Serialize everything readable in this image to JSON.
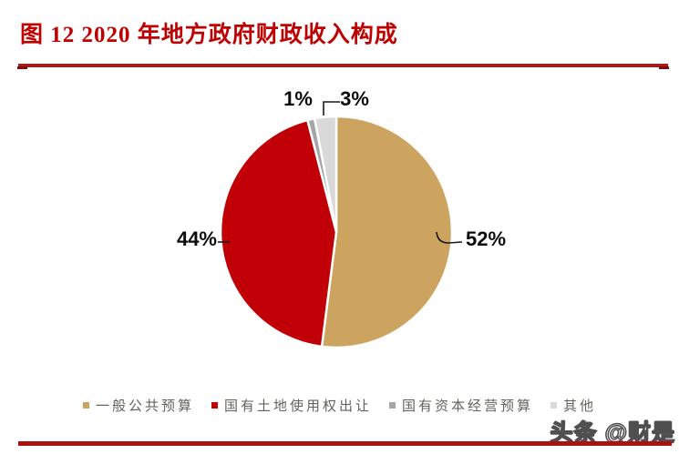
{
  "figure": {
    "title": "图 12 2020 年地方政府财政收入构成",
    "watermark": "头条 @财是"
  },
  "colors": {
    "title_red": "#C00000",
    "top_rule_red": "#A61C1C",
    "bottom_bar_red": "#AA1111",
    "label_text": "#0c0c0c",
    "legend_text": "#63635c"
  },
  "chart_data": {
    "type": "pie",
    "title": "2020 年地方政府财政收入构成",
    "start_angle_deg": 0,
    "direction": "clockwise",
    "legend_position": "bottom",
    "slice_border_color": "#ffffff",
    "slices": [
      {
        "label": "一般公共预算",
        "value_pct": 52,
        "data_label": "52%",
        "color": "#CDA45F"
      },
      {
        "label": "国有土地使用权出让",
        "value_pct": 44,
        "data_label": "44%",
        "color": "#C00006"
      },
      {
        "label": "国有资本经营预算",
        "value_pct": 1,
        "data_label": "1%",
        "color": "#A6A6A6"
      },
      {
        "label": "其他",
        "value_pct": 3,
        "data_label": "3%",
        "color": "#D9D9D9"
      }
    ]
  }
}
